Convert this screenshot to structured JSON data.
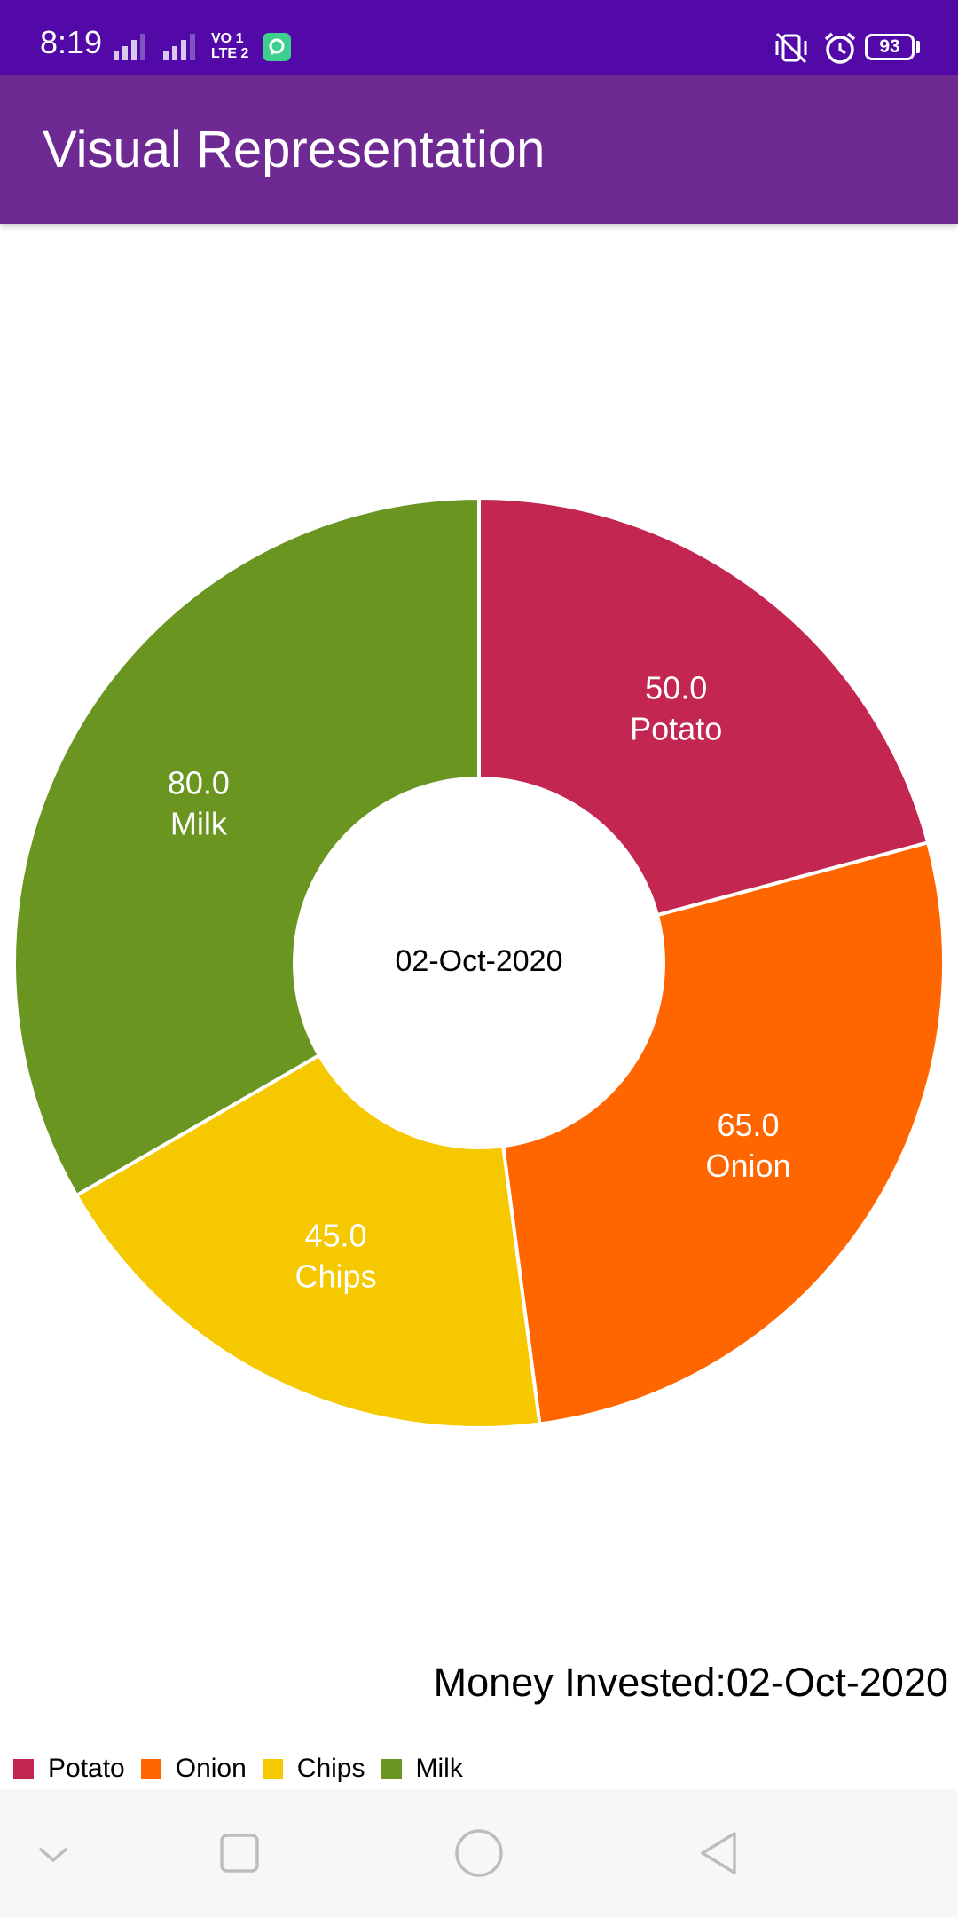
{
  "status_bar": {
    "time": "8:19",
    "network_badge_top": "VO 1",
    "network_badge_bottom": "LTE 2",
    "battery_level": "93",
    "icons": [
      "signal-sim1-icon",
      "signal-sim2-icon",
      "volte-icon",
      "app-notification-icon",
      "vibrate-off-icon",
      "alarm-icon",
      "battery-icon"
    ],
    "background_color": "#5209a8"
  },
  "app_bar": {
    "title": "Visual Representation",
    "background_color": "#6f2993"
  },
  "chart_data": {
    "type": "pie",
    "variant": "donut",
    "center_text": "02-Oct-2020",
    "categories": [
      "Potato",
      "Onion",
      "Chips",
      "Milk"
    ],
    "values": [
      50.0,
      65.0,
      45.0,
      80.0
    ],
    "value_labels": [
      "50.0",
      "65.0",
      "45.0",
      "80.0"
    ],
    "colors": [
      "#c22651",
      "#ff6600",
      "#f5c800",
      "#6b9521"
    ],
    "description": "Money Invested:02-Oct-2020",
    "legend_position": "bottom-left"
  },
  "nav_bar": {
    "buttons": [
      "collapse-icon",
      "recents-icon",
      "home-icon",
      "back-icon"
    ]
  }
}
